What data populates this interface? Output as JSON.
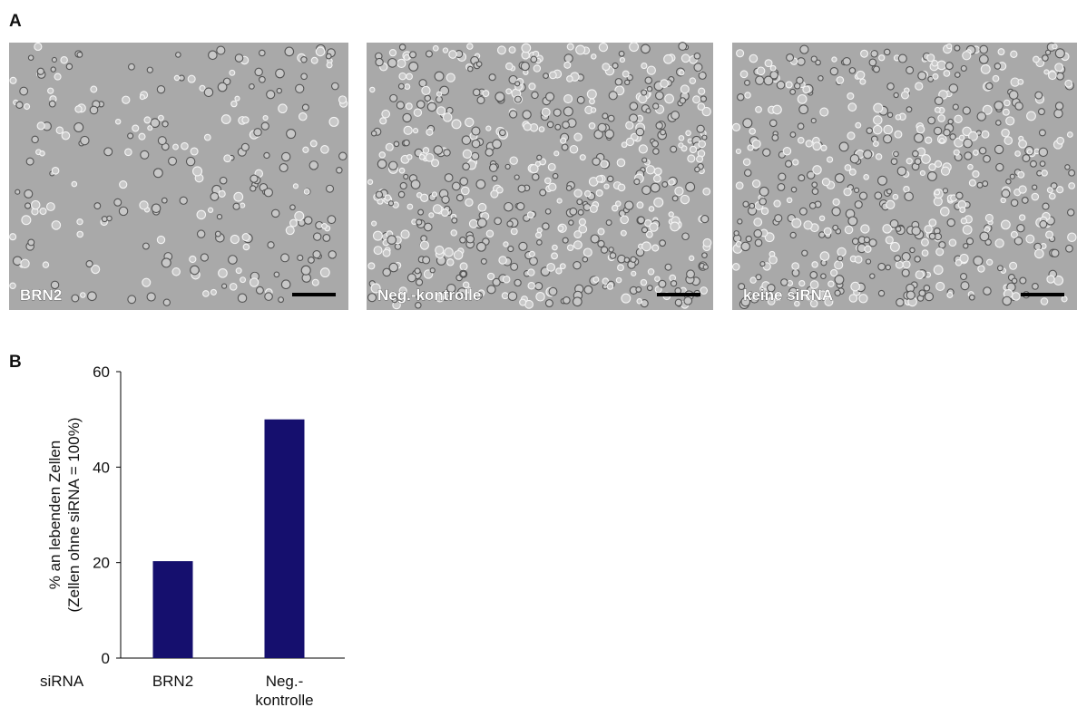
{
  "panel_a": {
    "label": "A",
    "images": [
      {
        "label": "BRN2"
      },
      {
        "label": "Neg.-kontrolle"
      },
      {
        "label": "keine siRNA"
      }
    ]
  },
  "chart_data": {
    "type": "bar",
    "panel_label": "B",
    "ylabel": [
      "% an lebenden Zellen",
      "(Zellen ohne siRNA = 100%)"
    ],
    "xlabel": "siRNA",
    "categories": [
      [
        "BRN2"
      ],
      [
        "Neg.-",
        "kontrolle"
      ]
    ],
    "values": [
      20.3,
      50
    ],
    "color": "#150f6e",
    "ylim": [
      0,
      60
    ],
    "yticks": [
      0,
      20,
      40,
      60
    ],
    "grid": false
  }
}
